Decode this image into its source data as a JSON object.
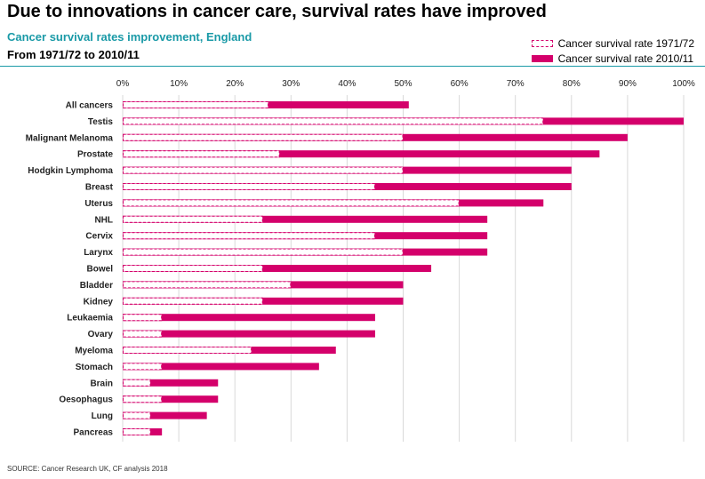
{
  "header": {
    "title": "Due to innovations in cancer care, survival rates have improved",
    "subtitle": "Cancer survival rates improvement, England",
    "period": "From 1971/72 to 2010/11"
  },
  "footer": {
    "source": "SOURCE: Cancer Research UK, CF analysis 2018"
  },
  "colors": {
    "accent": "#d4006b",
    "teal": "#1a9aa7",
    "grid": "#d9d9d9"
  },
  "chart_data": {
    "type": "bar",
    "orientation": "horizontal",
    "xlim": [
      0,
      100
    ],
    "x_ticks": [
      "0%",
      "10%",
      "20%",
      "30%",
      "40%",
      "50%",
      "60%",
      "70%",
      "80%",
      "90%",
      "100%"
    ],
    "grid": true,
    "legend_position": "top-right",
    "categories": [
      "All cancers",
      "Testis",
      "Malignant Melanoma",
      "Prostate",
      "Hodgkin Lymphoma",
      "Breast",
      "Uterus",
      "NHL",
      "Cervix",
      "Larynx",
      "Bowel",
      "Bladder",
      "Kidney",
      "Leukaemia",
      "Ovary",
      "Myeloma",
      "Stomach",
      "Brain",
      "Oesophagus",
      "Lung",
      "Pancreas"
    ],
    "series": [
      {
        "name": "Cancer survival rate 1971/72",
        "style": "dashed-outline",
        "values": [
          26,
          75,
          50,
          28,
          50,
          45,
          60,
          25,
          45,
          50,
          25,
          30,
          25,
          7,
          7,
          23,
          7,
          5,
          7,
          5,
          5
        ]
      },
      {
        "name": "Cancer survival rate 2010/11",
        "style": "solid",
        "values": [
          51,
          100,
          90,
          85,
          80,
          80,
          75,
          65,
          65,
          65,
          55,
          50,
          50,
          45,
          45,
          38,
          35,
          17,
          17,
          15,
          7
        ]
      }
    ]
  }
}
